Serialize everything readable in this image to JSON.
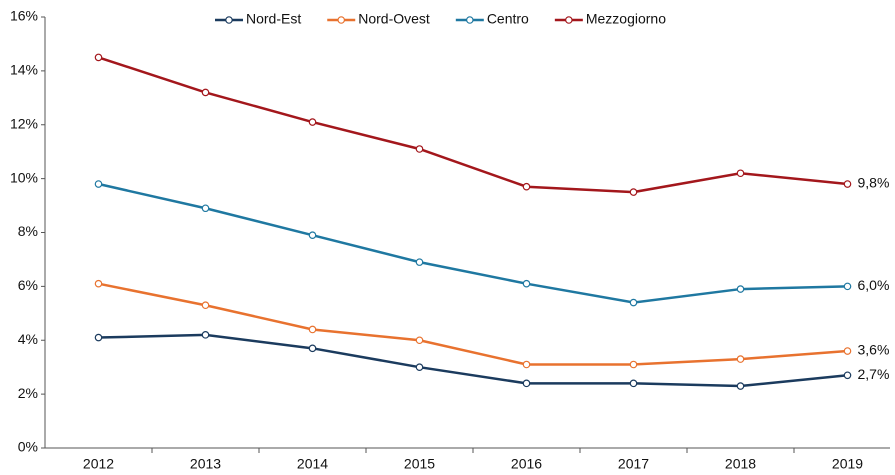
{
  "chart_data": {
    "type": "line",
    "categories": [
      "2012",
      "2013",
      "2014",
      "2015",
      "2016",
      "2017",
      "2018",
      "2019"
    ],
    "series": [
      {
        "name": "Nord-Est",
        "color": "#1b3b5e",
        "values": [
          4.1,
          4.2,
          3.7,
          3.0,
          2.4,
          2.4,
          2.3,
          2.7
        ],
        "value_labels": [
          null,
          null,
          null,
          null,
          null,
          null,
          null,
          "2,7%"
        ]
      },
      {
        "name": "Nord-Ovest",
        "color": "#e8722f",
        "values": [
          6.1,
          5.3,
          4.4,
          4.0,
          3.1,
          3.1,
          3.3,
          3.6
        ],
        "value_labels": [
          null,
          null,
          null,
          null,
          null,
          null,
          null,
          "3,6%"
        ]
      },
      {
        "name": "Centro",
        "color": "#1f78a1",
        "values": [
          9.8,
          8.9,
          7.9,
          6.9,
          6.1,
          5.4,
          5.9,
          6.0
        ],
        "value_labels": [
          null,
          null,
          null,
          null,
          null,
          null,
          null,
          "6,0%"
        ]
      },
      {
        "name": "Mezzogiorno",
        "color": "#a3171c",
        "values": [
          14.5,
          13.2,
          12.1,
          11.1,
          9.7,
          9.5,
          10.2,
          9.8
        ],
        "value_labels": [
          null,
          null,
          null,
          null,
          null,
          null,
          null,
          "9,8%"
        ]
      }
    ],
    "ylim": [
      0,
      16
    ],
    "yticks": [
      {
        "value": 0,
        "label": "0%"
      },
      {
        "value": 2,
        "label": "2%"
      },
      {
        "value": 4,
        "label": "4%"
      },
      {
        "value": 6,
        "label": "6%"
      },
      {
        "value": 8,
        "label": "8%"
      },
      {
        "value": 10,
        "label": "10%"
      },
      {
        "value": 12,
        "label": "12%"
      },
      {
        "value": 14,
        "label": "14%"
      },
      {
        "value": 16,
        "label": "16%"
      }
    ],
    "legend": "top"
  }
}
